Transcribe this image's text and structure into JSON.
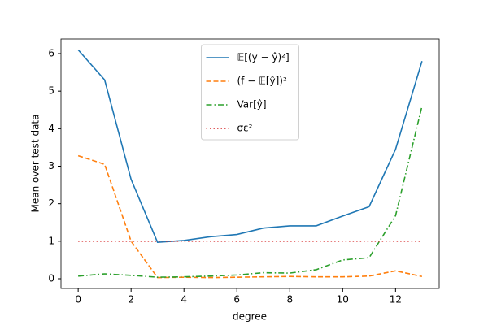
{
  "chart_data": {
    "type": "line",
    "xlabel": "degree",
    "ylabel": "Mean over test data",
    "x": [
      0,
      1,
      2,
      3,
      4,
      5,
      6,
      7,
      8,
      9,
      10,
      11,
      12,
      13
    ],
    "series": [
      {
        "name": "𝔼[(y − ŷ)²]",
        "color": "#1f77b4",
        "linestyle": "solid",
        "values": [
          6.1,
          5.3,
          2.65,
          0.97,
          1.02,
          1.12,
          1.18,
          1.35,
          1.41,
          1.41,
          1.67,
          1.92,
          3.45,
          5.8
        ]
      },
      {
        "name": "(f − 𝔼[ŷ])²",
        "color": "#ff7f0e",
        "linestyle": "dashed",
        "values": [
          3.28,
          3.05,
          1.0,
          0.03,
          0.04,
          0.03,
          0.04,
          0.05,
          0.06,
          0.05,
          0.05,
          0.07,
          0.21,
          0.06
        ]
      },
      {
        "name": "Var[ŷ]",
        "color": "#2ca02c",
        "linestyle": "dashdot",
        "values": [
          0.07,
          0.13,
          0.09,
          0.04,
          0.05,
          0.07,
          0.1,
          0.16,
          0.15,
          0.24,
          0.5,
          0.56,
          1.68,
          4.6
        ]
      },
      {
        "name": "σε²",
        "color": "#d62728",
        "linestyle": "dotted",
        "values": [
          1,
          1,
          1,
          1,
          1,
          1,
          1,
          1,
          1,
          1,
          1,
          1,
          1,
          1
        ]
      }
    ],
    "xlim": [
      -0.65,
      13.65
    ],
    "xticks": [
      0,
      2,
      4,
      6,
      8,
      10,
      12
    ],
    "ylim": [
      -0.26,
      6.39
    ],
    "yticks": [
      0,
      1,
      2,
      3,
      4,
      5,
      6
    ],
    "legend": "upper center"
  }
}
